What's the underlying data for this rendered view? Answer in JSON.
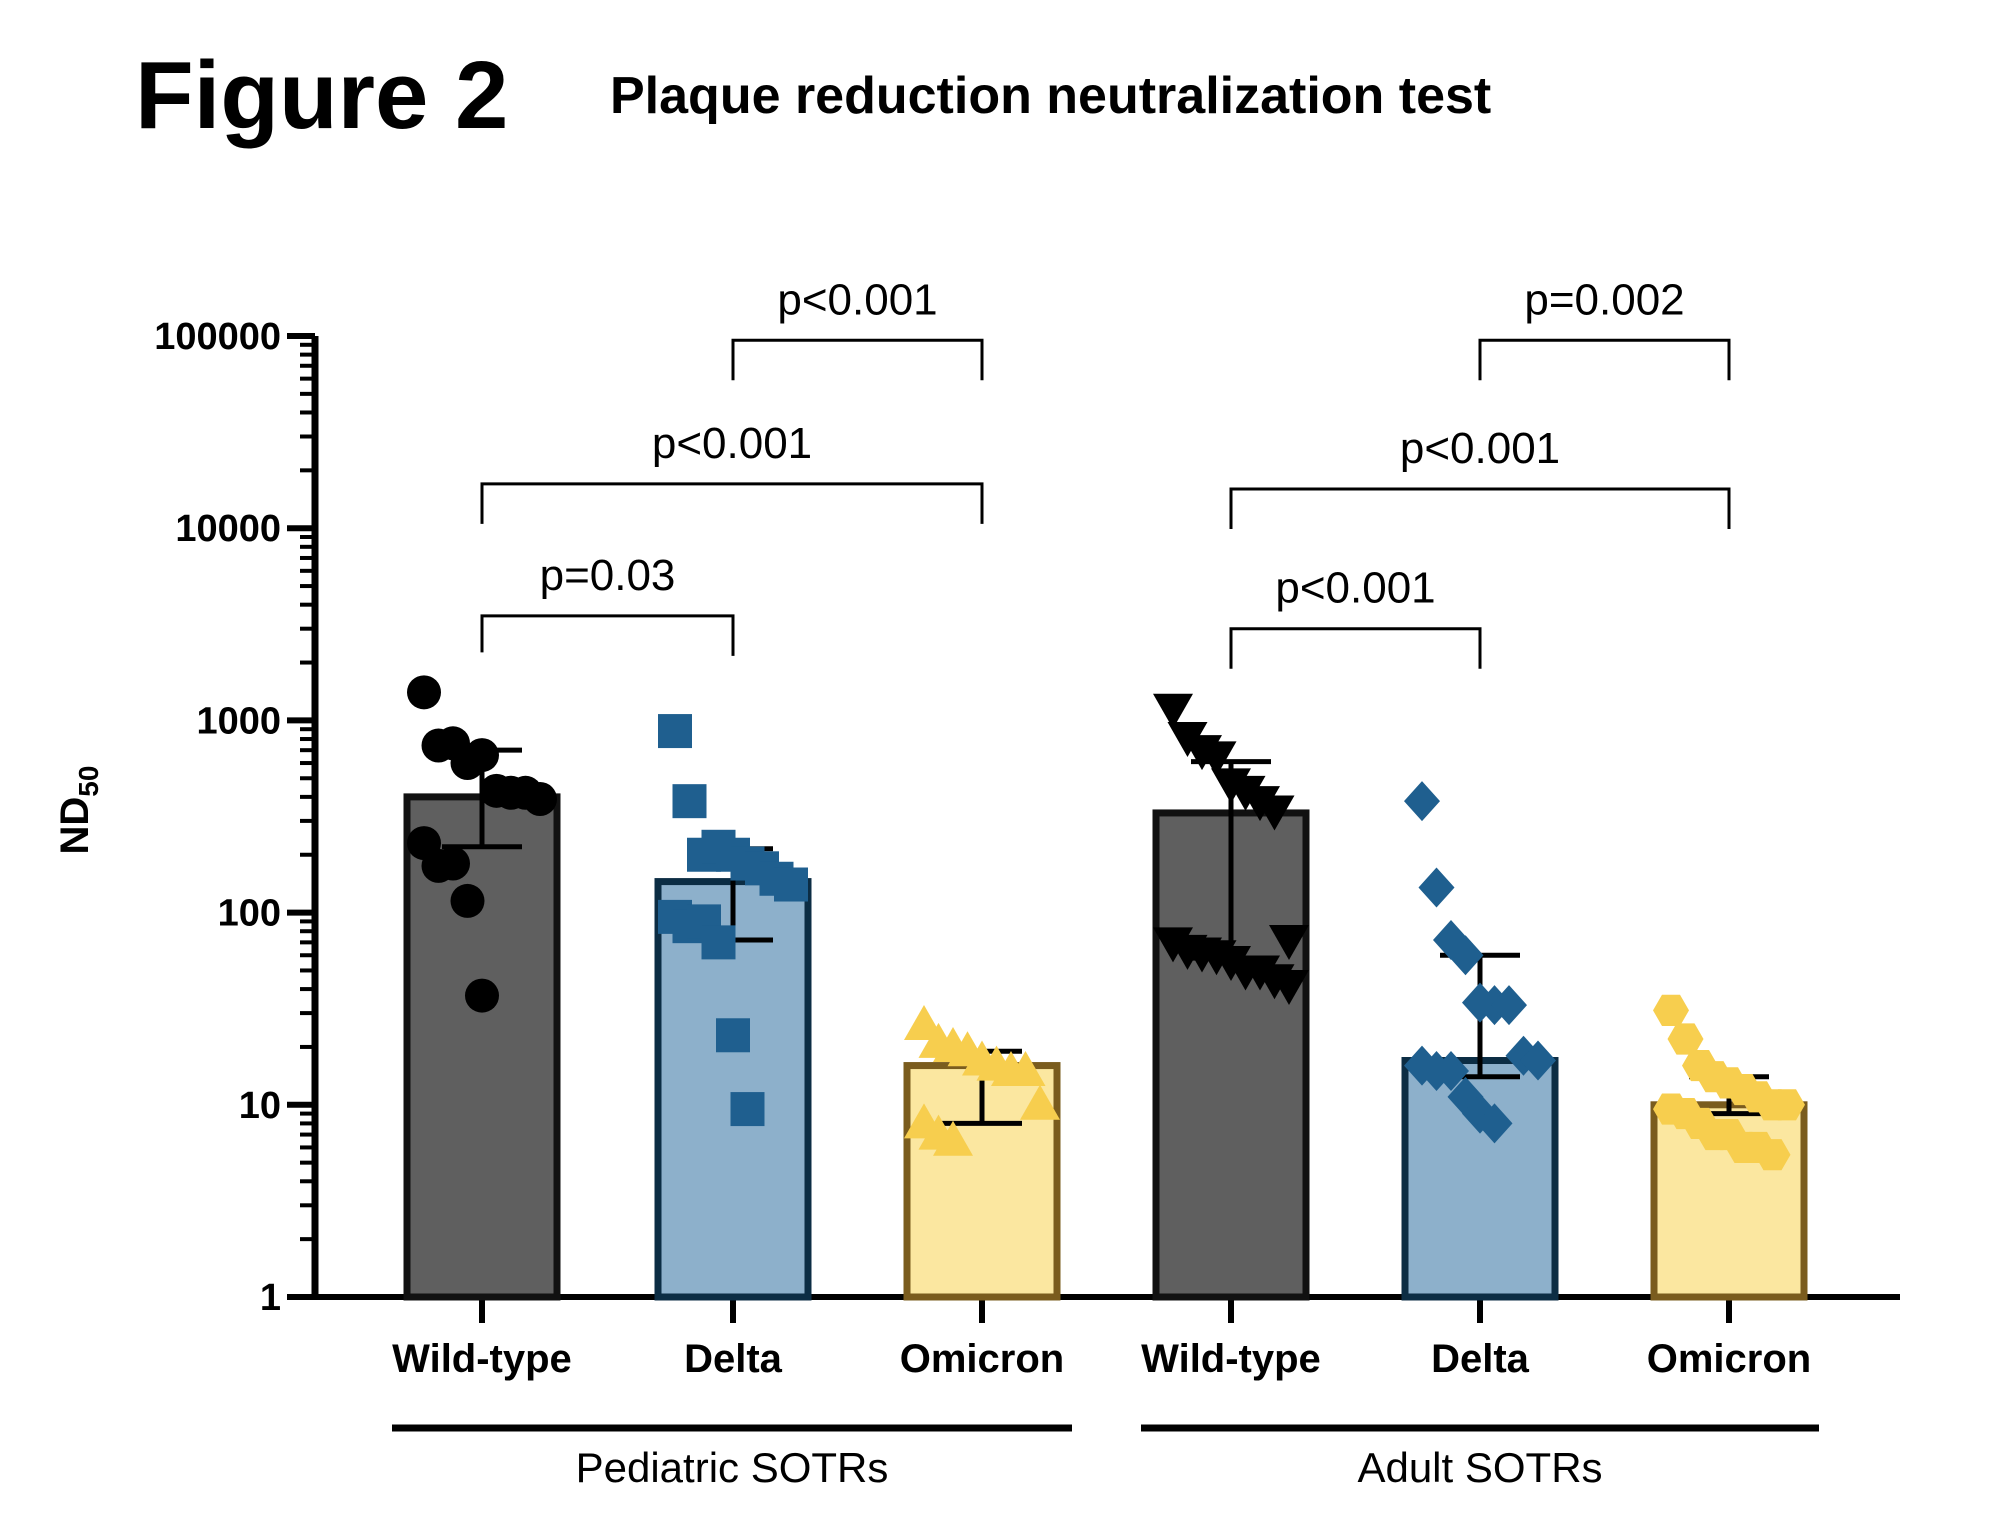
{
  "figure_label": "Figure 2",
  "chart_data": {
    "type": "bar",
    "title": "Plaque reduction neutralization test",
    "ylabel": "ND50",
    "ylabel_main": "ND",
    "ylabel_sub": "50",
    "yscale": "log",
    "ylim": [
      1,
      100000
    ],
    "yticks": [
      1,
      10,
      100,
      1000,
      10000,
      100000
    ],
    "ytick_labels": [
      "1",
      "10",
      "100",
      "1000",
      "10000",
      "100000"
    ],
    "grid": false,
    "colors": {
      "wild_type_fill": "#5f5f5f",
      "wild_type_edge": "#111111",
      "wild_type_marker": "#000000",
      "delta_fill": "#8db0cb",
      "delta_edge": "#0c2d44",
      "delta_marker": "#1f5f8f",
      "omicron_fill": "#fbe7a0",
      "omicron_edge": "#7a5c1e",
      "omicron_marker": "#f7ce4e"
    },
    "groups": [
      {
        "label": "Pediatric SOTRs",
        "bars": [
          {
            "category": "Wild-type",
            "variant": "wild_type",
            "marker": "circle",
            "value": 400,
            "error_low": 220,
            "error_high": 700,
            "points": [
              1400,
              740,
              760,
              600,
              660,
              430,
              420,
              420,
              390,
              230,
              175,
              180,
              115,
              37
            ]
          },
          {
            "category": "Delta",
            "variant": "delta",
            "marker": "square",
            "value": 145,
            "error_low": 72,
            "error_high": 215,
            "points": [
              880,
              380,
              200,
              220,
              200,
              180,
              170,
              150,
              140,
              95,
              85,
              90,
              70,
              23,
              9.5
            ]
          },
          {
            "category": "Omicron",
            "variant": "omicron",
            "marker": "triangle-up",
            "value": 16,
            "error_low": 8,
            "error_high": 19,
            "points": [
              26,
              21,
              20,
              19,
              17,
              16,
              15,
              15,
              10,
              8,
              7,
              6.5
            ]
          }
        ]
      },
      {
        "label": "Adult SOTRs",
        "bars": [
          {
            "category": "Wild-type",
            "variant": "wild_type",
            "marker": "triangle-down",
            "value": 330,
            "error_low": 58,
            "error_high": 610,
            "points": [
              1150,
              820,
              700,
              650,
              470,
              430,
              380,
              340,
              72,
              70,
              64,
              62,
              60,
              56,
              50,
              50,
              45,
              42
            ]
          },
          {
            "category": "Delta",
            "variant": "delta",
            "marker": "diamond",
            "value": 17,
            "error_low": 14,
            "error_high": 60,
            "points": [
              380,
              135,
              72,
              60,
              34,
              33,
              33,
              18,
              17,
              16,
              15,
              15,
              11,
              9,
              8
            ]
          },
          {
            "category": "Omicron",
            "variant": "omicron",
            "marker": "hexagon",
            "value": 10,
            "error_low": 9,
            "error_high": 14,
            "points": [
              31,
              22,
              16,
              14,
              13,
              12,
              11,
              10,
              10,
              9.5,
              9,
              8,
              7,
              7,
              6,
              6,
              5.5
            ]
          }
        ]
      }
    ],
    "annotations": [
      {
        "text": "p=0.03",
        "from": [
          0,
          0
        ],
        "to": [
          0,
          1
        ],
        "y": 3500
      },
      {
        "text": "p<0.001",
        "from": [
          0,
          0
        ],
        "to": [
          0,
          2
        ],
        "y": 17000
      },
      {
        "text": "p<0.001",
        "from": [
          0,
          1
        ],
        "to": [
          0,
          2
        ],
        "y": 95000
      },
      {
        "text": "p<0.001",
        "from": [
          1,
          0
        ],
        "to": [
          1,
          1
        ],
        "y": 3000
      },
      {
        "text": "p<0.001",
        "from": [
          1,
          0
        ],
        "to": [
          1,
          2
        ],
        "y": 16000
      },
      {
        "text": "p=0.002",
        "from": [
          1,
          1
        ],
        "to": [
          1,
          2
        ],
        "y": 95000
      }
    ]
  }
}
